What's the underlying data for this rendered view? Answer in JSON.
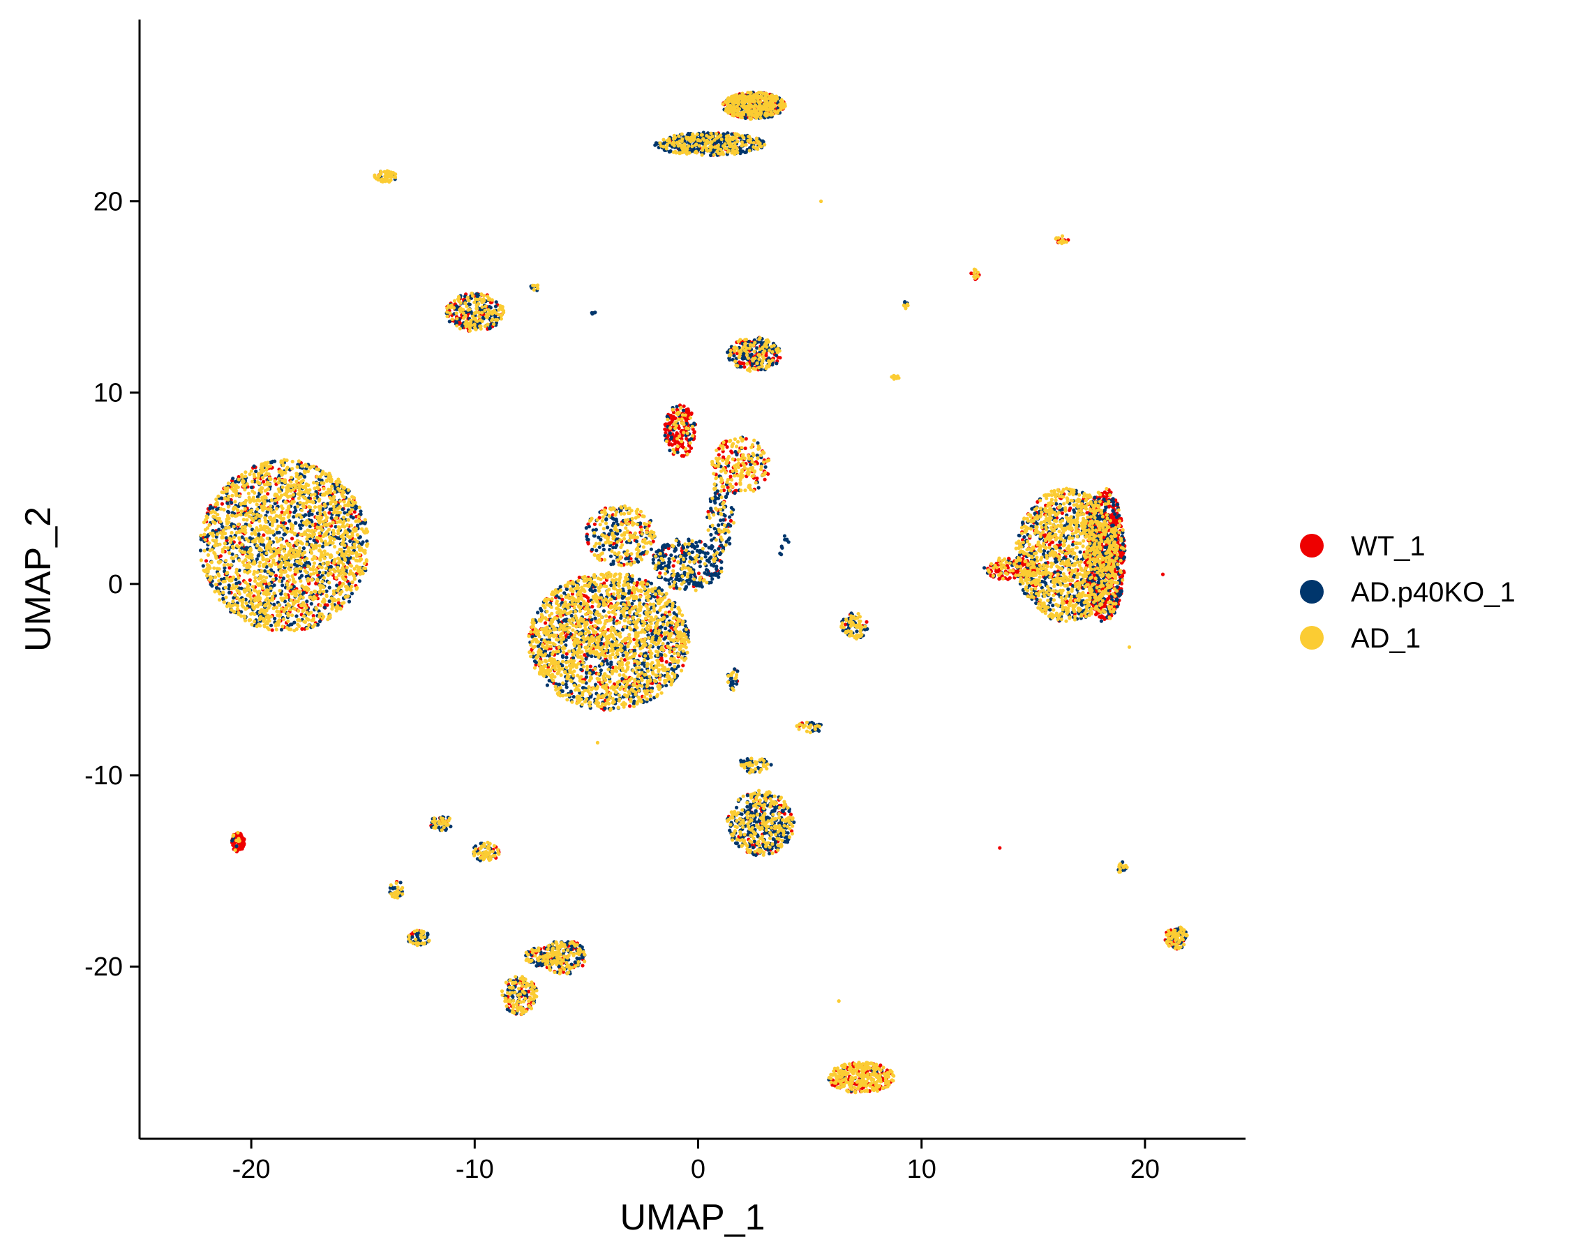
{
  "chart_data": {
    "type": "scatter",
    "title": "",
    "xlabel": "UMAP_1",
    "ylabel": "UMAP_2",
    "xlim": [
      -25,
      24.5
    ],
    "ylim": [
      -29,
      29.5
    ],
    "x_ticks": [
      -20,
      -10,
      0,
      10,
      20
    ],
    "y_ticks": [
      -20,
      -10,
      0,
      10,
      20
    ],
    "x_tick_labels": [
      "-20",
      "-10",
      "0",
      "10",
      "20"
    ],
    "y_tick_labels": [
      "-20",
      "-10",
      "0",
      "10",
      "20"
    ],
    "grid": false,
    "legend_position": "right",
    "legend": [
      {
        "name": "WT_1",
        "color": "#EE0000"
      },
      {
        "name": "AD.p40KO_1",
        "color": "#00366C"
      },
      {
        "name": "AD_1",
        "color": "#FBCC33"
      }
    ],
    "draw_order": [
      "WT_1",
      "AD.p40KO_1",
      "AD_1"
    ],
    "clusters": [
      {
        "x": -18.5,
        "y": 2.0,
        "rx": 3.8,
        "ry": 4.5,
        "n": 2400,
        "mix": [
          0.12,
          0.28,
          0.6
        ]
      },
      {
        "x": -4.0,
        "y": -3.0,
        "rx": 3.6,
        "ry": 3.6,
        "n": 2100,
        "mix": [
          0.12,
          0.3,
          0.58
        ]
      },
      {
        "x": -3.5,
        "y": 2.5,
        "rx": 1.6,
        "ry": 1.6,
        "n": 300,
        "mix": [
          0.15,
          0.3,
          0.55
        ]
      },
      {
        "x": -0.5,
        "y": 1.0,
        "rx": 1.6,
        "ry": 1.4,
        "n": 300,
        "mix": [
          0.1,
          0.65,
          0.25
        ]
      },
      {
        "x": 1.0,
        "y": 3.5,
        "rx": 0.6,
        "ry": 2.0,
        "n": 120,
        "mix": [
          0.15,
          0.5,
          0.35
        ]
      },
      {
        "x": -0.8,
        "y": 8.0,
        "rx": 0.7,
        "ry": 1.4,
        "n": 200,
        "mix": [
          0.7,
          0.1,
          0.2
        ]
      },
      {
        "x": 1.9,
        "y": 6.2,
        "rx": 1.3,
        "ry": 1.5,
        "n": 220,
        "mix": [
          0.3,
          0.1,
          0.6
        ]
      },
      {
        "x": 2.5,
        "y": 12.0,
        "rx": 1.2,
        "ry": 0.9,
        "n": 250,
        "mix": [
          0.2,
          0.35,
          0.45
        ]
      },
      {
        "x": 16.5,
        "y": 1.5,
        "rx": 2.3,
        "ry": 3.5,
        "n": 1400,
        "mix": [
          0.12,
          0.25,
          0.63
        ]
      },
      {
        "x": 18.2,
        "y": 1.5,
        "rx": 0.9,
        "ry": 3.5,
        "n": 900,
        "mix": [
          0.65,
          0.2,
          0.15
        ]
      },
      {
        "x": 14.0,
        "y": 0.8,
        "rx": 1.2,
        "ry": 0.6,
        "n": 150,
        "mix": [
          0.5,
          0.1,
          0.4
        ]
      },
      {
        "x": 2.5,
        "y": 25.0,
        "rx": 1.4,
        "ry": 0.7,
        "n": 600,
        "mix": [
          0.25,
          0.25,
          0.5
        ]
      },
      {
        "x": 0.5,
        "y": 23.0,
        "rx": 2.5,
        "ry": 0.6,
        "n": 500,
        "mix": [
          0.05,
          0.55,
          0.4
        ]
      },
      {
        "x": -10.0,
        "y": 14.2,
        "rx": 1.3,
        "ry": 1.0,
        "n": 300,
        "mix": [
          0.3,
          0.3,
          0.4
        ]
      },
      {
        "x": 2.8,
        "y": -12.5,
        "rx": 1.5,
        "ry": 1.7,
        "n": 500,
        "mix": [
          0.08,
          0.47,
          0.45
        ]
      },
      {
        "x": 2.5,
        "y": -9.5,
        "rx": 0.8,
        "ry": 0.4,
        "n": 60,
        "mix": [
          0.05,
          0.45,
          0.5
        ]
      },
      {
        "x": 5.0,
        "y": -7.5,
        "rx": 0.6,
        "ry": 0.3,
        "n": 40,
        "mix": [
          0.05,
          0.45,
          0.5
        ]
      },
      {
        "x": 7.0,
        "y": -2.2,
        "rx": 0.6,
        "ry": 0.7,
        "n": 100,
        "mix": [
          0.05,
          0.4,
          0.55
        ]
      },
      {
        "x": 7.3,
        "y": -25.8,
        "rx": 1.5,
        "ry": 0.8,
        "n": 350,
        "mix": [
          0.3,
          0.05,
          0.65
        ]
      },
      {
        "x": -6.0,
        "y": -19.5,
        "rx": 1.0,
        "ry": 0.9,
        "n": 200,
        "mix": [
          0.25,
          0.3,
          0.45
        ]
      },
      {
        "x": -8.0,
        "y": -21.5,
        "rx": 0.8,
        "ry": 1.0,
        "n": 180,
        "mix": [
          0.2,
          0.3,
          0.5
        ]
      },
      {
        "x": -7.0,
        "y": -19.5,
        "rx": 0.8,
        "ry": 0.5,
        "n": 100,
        "mix": [
          0.2,
          0.3,
          0.5
        ]
      },
      {
        "x": -9.5,
        "y": -14.0,
        "rx": 0.6,
        "ry": 0.5,
        "n": 80,
        "mix": [
          0.05,
          0.45,
          0.5
        ]
      },
      {
        "x": -11.5,
        "y": -12.5,
        "rx": 0.5,
        "ry": 0.4,
        "n": 60,
        "mix": [
          0.05,
          0.45,
          0.5
        ]
      },
      {
        "x": -12.5,
        "y": -18.5,
        "rx": 0.5,
        "ry": 0.4,
        "n": 60,
        "mix": [
          0.05,
          0.45,
          0.5
        ]
      },
      {
        "x": -13.5,
        "y": -16.0,
        "rx": 0.3,
        "ry": 0.5,
        "n": 30,
        "mix": [
          0.05,
          0.45,
          0.5
        ]
      },
      {
        "x": -20.6,
        "y": -13.5,
        "rx": 0.3,
        "ry": 0.5,
        "n": 80,
        "mix": [
          0.85,
          0.05,
          0.1
        ]
      },
      {
        "x": -14.0,
        "y": 21.3,
        "rx": 0.5,
        "ry": 0.3,
        "n": 60,
        "mix": [
          0.05,
          0.1,
          0.85
        ]
      },
      {
        "x": 21.4,
        "y": -18.5,
        "rx": 0.5,
        "ry": 0.6,
        "n": 120,
        "mix": [
          0.25,
          0.25,
          0.5
        ]
      },
      {
        "x": 16.3,
        "y": 18.0,
        "rx": 0.3,
        "ry": 0.2,
        "n": 20,
        "mix": [
          0.3,
          0.1,
          0.6
        ]
      },
      {
        "x": 12.4,
        "y": 16.2,
        "rx": 0.2,
        "ry": 0.3,
        "n": 15,
        "mix": [
          0.3,
          0.1,
          0.6
        ]
      },
      {
        "x": 9.3,
        "y": 14.6,
        "rx": 0.1,
        "ry": 0.2,
        "n": 8,
        "mix": [
          0.1,
          0.3,
          0.6
        ]
      },
      {
        "x": 8.8,
        "y": 10.8,
        "rx": 0.2,
        "ry": 0.1,
        "n": 8,
        "mix": [
          0.0,
          0.0,
          1.0
        ]
      },
      {
        "x": 1.6,
        "y": -5.0,
        "rx": 0.3,
        "ry": 0.6,
        "n": 30,
        "mix": [
          0.1,
          0.4,
          0.5
        ]
      },
      {
        "x": -7.3,
        "y": 15.5,
        "rx": 0.2,
        "ry": 0.2,
        "n": 12,
        "mix": [
          0.3,
          0.2,
          0.5
        ]
      },
      {
        "x": -4.7,
        "y": 14.2,
        "rx": 0.1,
        "ry": 0.1,
        "n": 5,
        "mix": [
          0.2,
          0.4,
          0.4
        ]
      },
      {
        "x": 3.8,
        "y": 2.0,
        "rx": 0.3,
        "ry": 0.6,
        "n": 10,
        "mix": [
          0.1,
          0.5,
          0.4
        ]
      },
      {
        "x": 19.0,
        "y": -14.8,
        "rx": 0.2,
        "ry": 0.5,
        "n": 20,
        "mix": [
          0.1,
          0.4,
          0.5
        ]
      }
    ],
    "outliers": [
      {
        "x": 5.5,
        "y": 20.0,
        "series": "AD_1"
      },
      {
        "x": 13.5,
        "y": -13.8,
        "series": "WT_1"
      },
      {
        "x": 20.8,
        "y": 0.5,
        "series": "WT_1"
      },
      {
        "x": 6.3,
        "y": -21.8,
        "series": "AD_1"
      },
      {
        "x": -4.5,
        "y": -8.3,
        "series": "AD_1"
      },
      {
        "x": 19.3,
        "y": -3.3,
        "series": "AD_1"
      }
    ]
  }
}
